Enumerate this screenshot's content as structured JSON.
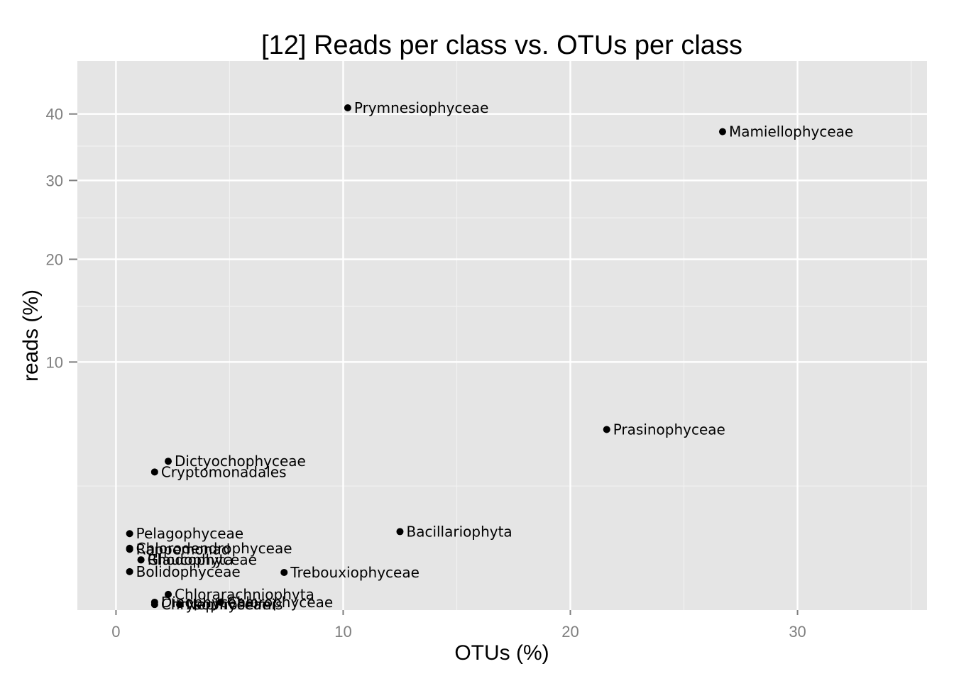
{
  "chart_data": {
    "type": "scatter",
    "title": "[12] Reads per class vs. OTUs per class",
    "xlabel": "OTUs (%)",
    "ylabel": "reads (%)",
    "y_scale": "sqrt",
    "xlim": [
      -1.7,
      35.7
    ],
    "ylim": [
      0,
      49
    ],
    "x_ticks": [
      0,
      10,
      20,
      30
    ],
    "x_tick_labels": [
      "0",
      "10",
      "20",
      "30"
    ],
    "y_ticks": [
      10,
      20,
      30,
      40
    ],
    "y_tick_labels": [
      "10",
      "20",
      "30",
      "40"
    ],
    "grid": true,
    "legend": "none",
    "point_color": "#000000",
    "panel_color": "#e5e5e5",
    "points": [
      {
        "label": "Prymnesiophyceae",
        "x": 10.2,
        "y": 41.0
      },
      {
        "label": "Mamiellophyceae",
        "x": 26.7,
        "y": 37.2
      },
      {
        "label": "Prasinophyceae",
        "x": 21.6,
        "y": 5.3
      },
      {
        "label": "Dictyochophyceae",
        "x": 2.3,
        "y": 3.6
      },
      {
        "label": "Cryptomonadales",
        "x": 1.7,
        "y": 3.1
      },
      {
        "label": "Bacillariophyta",
        "x": 12.5,
        "y": 1.0
      },
      {
        "label": "Rappemonad",
        "x": 0.6,
        "y": 0.6
      },
      {
        "label": "Bolidophyceae",
        "x": 0.6,
        "y": 0.24
      },
      {
        "label": "Trebouxiophyceae",
        "x": 7.4,
        "y": 0.23
      },
      {
        "label": "Dinophyceae",
        "x": 1.7,
        "y": 0.01
      },
      {
        "label": "Chlorophyceae",
        "x": 4.6,
        "y": 0.01
      },
      {
        "label": "Chrysophyceae",
        "x": 1.7,
        "y": 0.005
      },
      {
        "label": "Nephroselmis",
        "x": 2.8,
        "y": 0.005
      },
      {
        "label": "Chlorarachniophyta",
        "x": 2.3,
        "y": 0.04
      },
      {
        "label": "Rhodophyta",
        "x": 1.1,
        "y": 0.41
      },
      {
        "label": "Glaucophyceae",
        "x": 1.1,
        "y": 0.41
      },
      {
        "label": "Chlorodendrophyceae",
        "x": 0.6,
        "y": 0.62
      },
      {
        "label": "Pelagophyceae",
        "x": 0.6,
        "y": 0.95
      }
    ]
  }
}
